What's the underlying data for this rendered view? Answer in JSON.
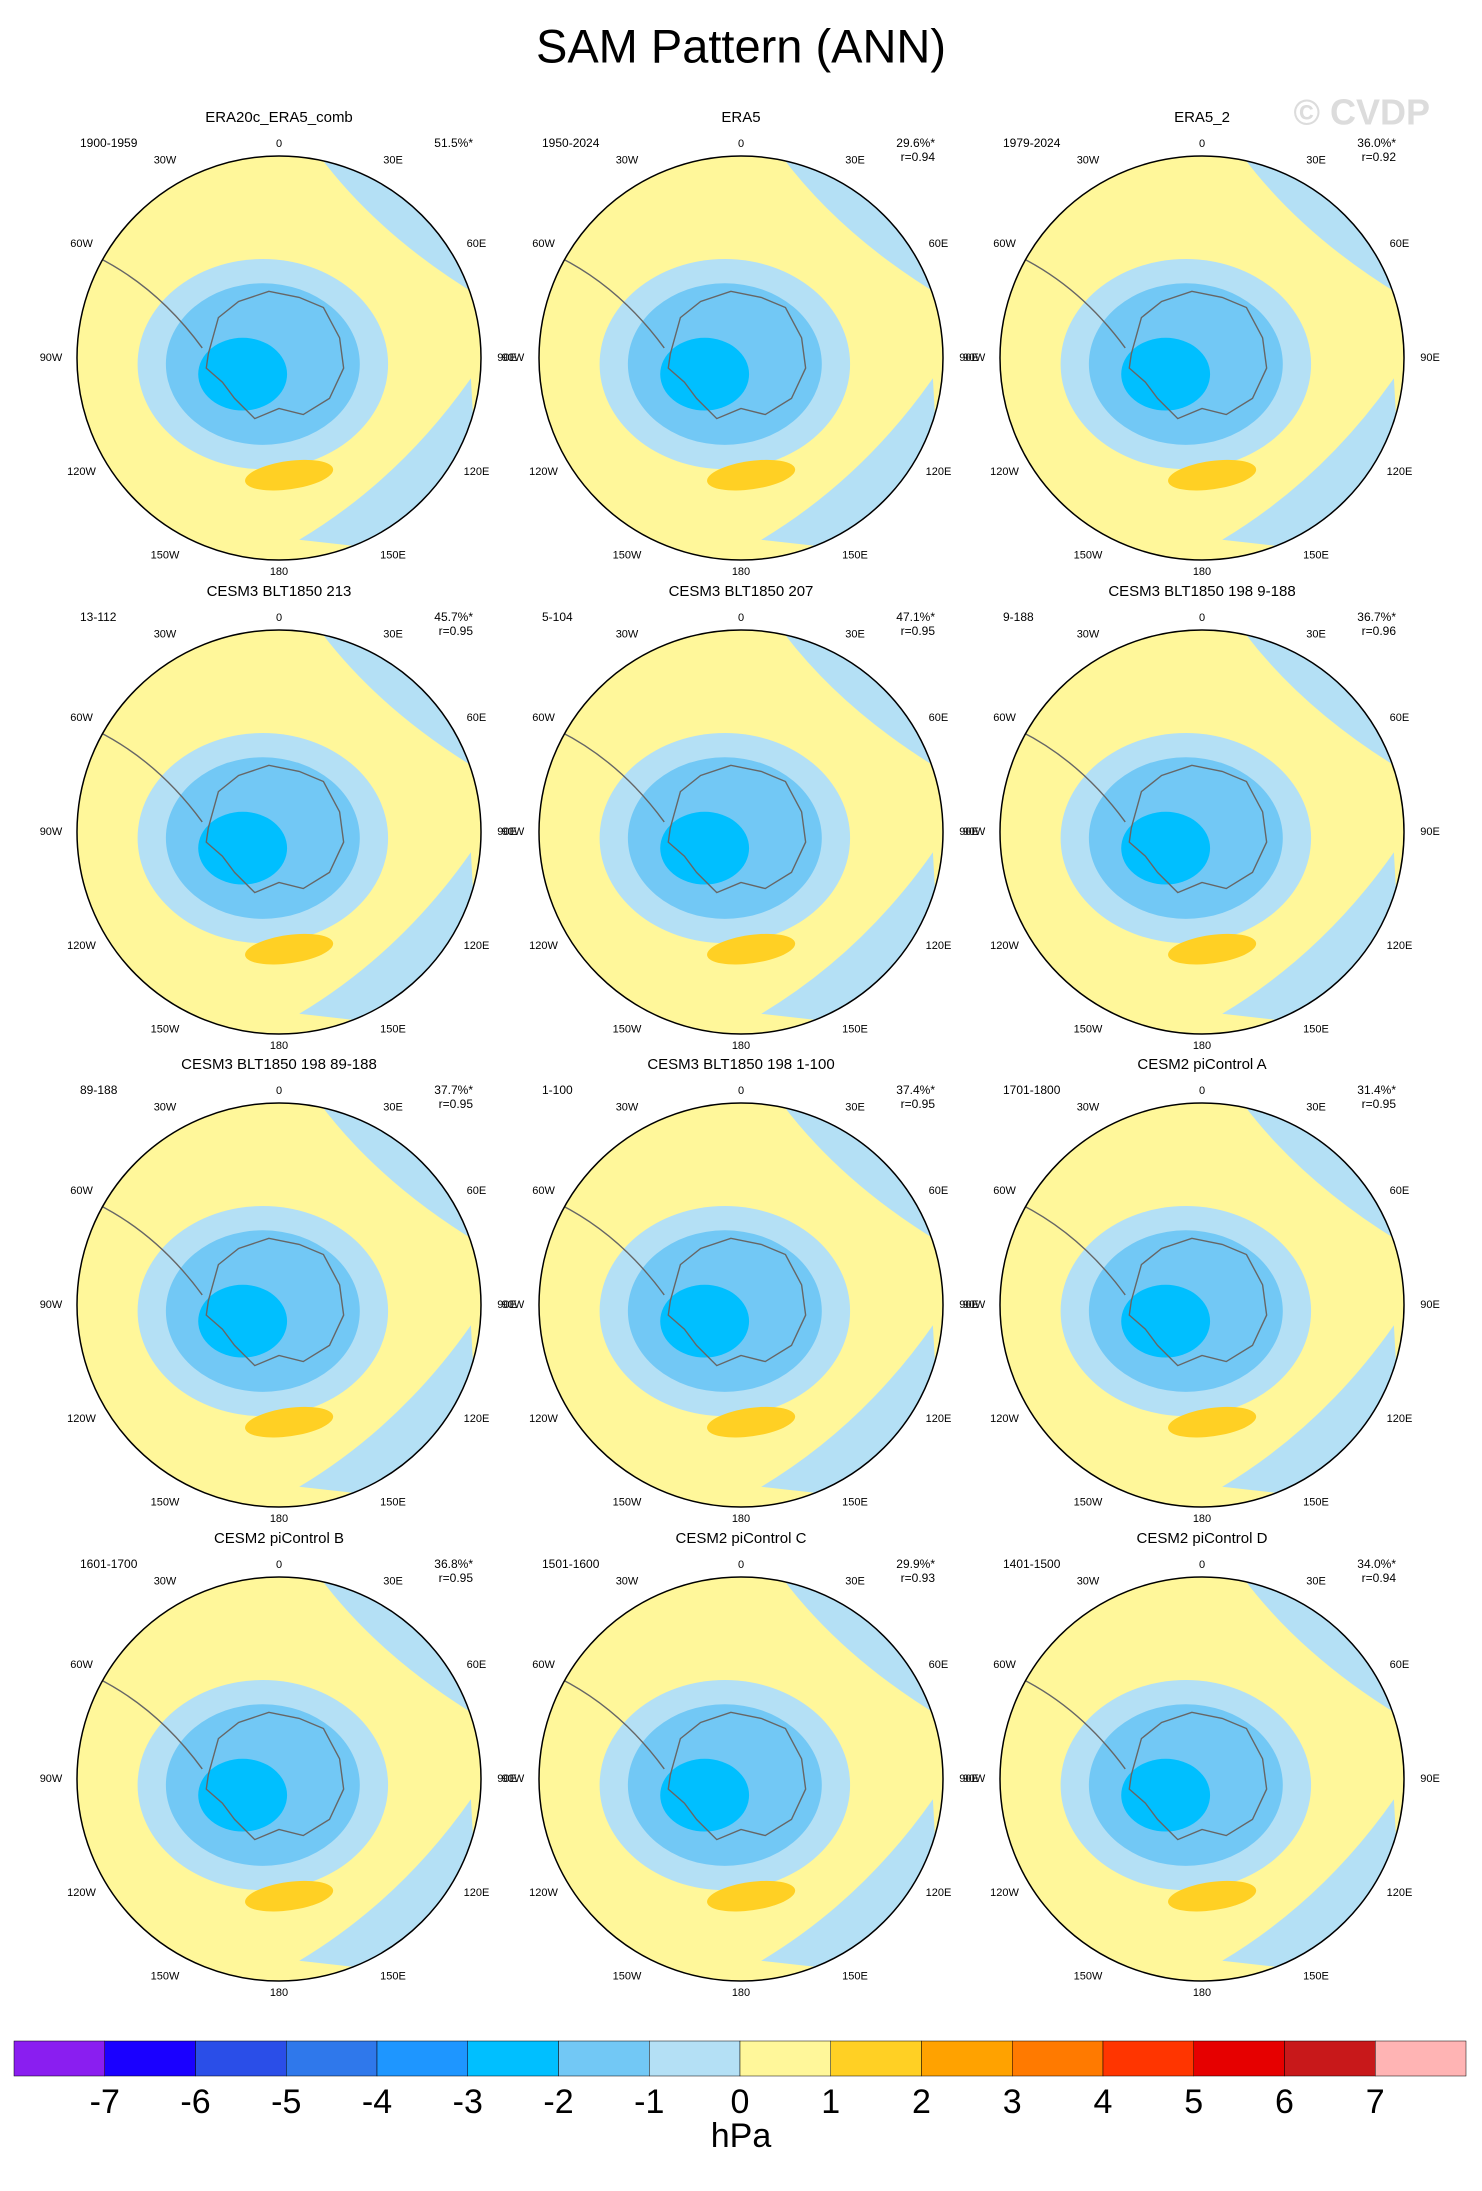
{
  "title": "SAM Pattern (ANN)",
  "watermark": "© CVDP",
  "lon_labels": [
    "0",
    "30E",
    "60E",
    "90E",
    "120E",
    "150E",
    "180",
    "150W",
    "120W",
    "90W",
    "60W",
    "30W"
  ],
  "panels": [
    {
      "title": "ERA20c_ERA5_comb",
      "period": "1900-1959",
      "pct": "51.5%*"
    },
    {
      "title": "ERA5",
      "period": "1950-2024",
      "pct": "29.6%*",
      "r": "r=0.94"
    },
    {
      "title": "ERA5_2",
      "period": "1979-2024",
      "pct": "36.0%*",
      "r": "r=0.92"
    },
    {
      "title": "CESM3 BLT1850 213",
      "period": "13-112",
      "pct": "45.7%*",
      "r": "r=0.95"
    },
    {
      "title": "CESM3 BLT1850 207",
      "period": "5-104",
      "pct": "47.1%*",
      "r": "r=0.95"
    },
    {
      "title": "CESM3 BLT1850 198 9-188",
      "period": "9-188",
      "pct": "36.7%*",
      "r": "r=0.96"
    },
    {
      "title": "CESM3 BLT1850 198 89-188",
      "period": "89-188",
      "pct": "37.7%*",
      "r": "r=0.95"
    },
    {
      "title": "CESM3 BLT1850 198 1-100",
      "period": "1-100",
      "pct": "37.4%*",
      "r": "r=0.95"
    },
    {
      "title": "CESM2 piControl A",
      "period": "1701-1800",
      "pct": "31.4%*",
      "r": "r=0.95"
    },
    {
      "title": "CESM2 piControl B",
      "period": "1601-1700",
      "pct": "36.8%*",
      "r": "r=0.95"
    },
    {
      "title": "CESM2 piControl C",
      "period": "1501-1600",
      "pct": "29.9%*",
      "r": "r=0.93"
    },
    {
      "title": "CESM2 piControl D",
      "period": "1401-1500",
      "pct": "34.0%*",
      "r": "r=0.94"
    }
  ],
  "colorbar": {
    "colors": [
      "#8a1ef0",
      "#1a00ff",
      "#2a4ee8",
      "#2f78eb",
      "#1e96ff",
      "#00bfff",
      "#72c8f5",
      "#b4e0f5",
      "#fff79a",
      "#ffd024",
      "#ffa200",
      "#ff7a00",
      "#ff3500",
      "#e60000",
      "#c8181a",
      "#ffb4b4"
    ],
    "ticks": [
      -7,
      -6,
      -5,
      -4,
      -3,
      -2,
      -1,
      0,
      1,
      2,
      3,
      4,
      5,
      6,
      7
    ],
    "units": "hPa"
  }
}
